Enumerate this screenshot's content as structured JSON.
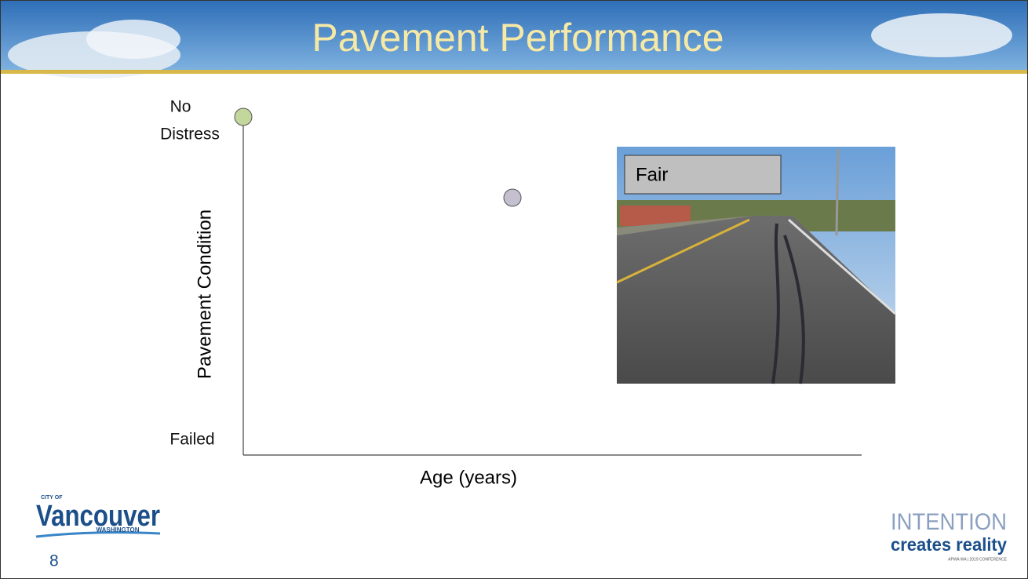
{
  "header": {
    "title": "Pavement Performance"
  },
  "diagram": {
    "y_top_line1": "No",
    "y_top_line2": "Distress",
    "y_bottom": "Failed",
    "y_axis_label": "Pavement Condition",
    "x_axis_label": "Age (years)",
    "photo_label": "Fair"
  },
  "footer": {
    "logo": {
      "city_of": "CITY OF",
      "name": "Vancouver",
      "state": "WASHINGTON"
    },
    "page_number": "8",
    "conference": {
      "line1": "INTENTION",
      "line2": "creates reality",
      "line3": "APWA WA | 2019 CONFERENCE"
    }
  }
}
